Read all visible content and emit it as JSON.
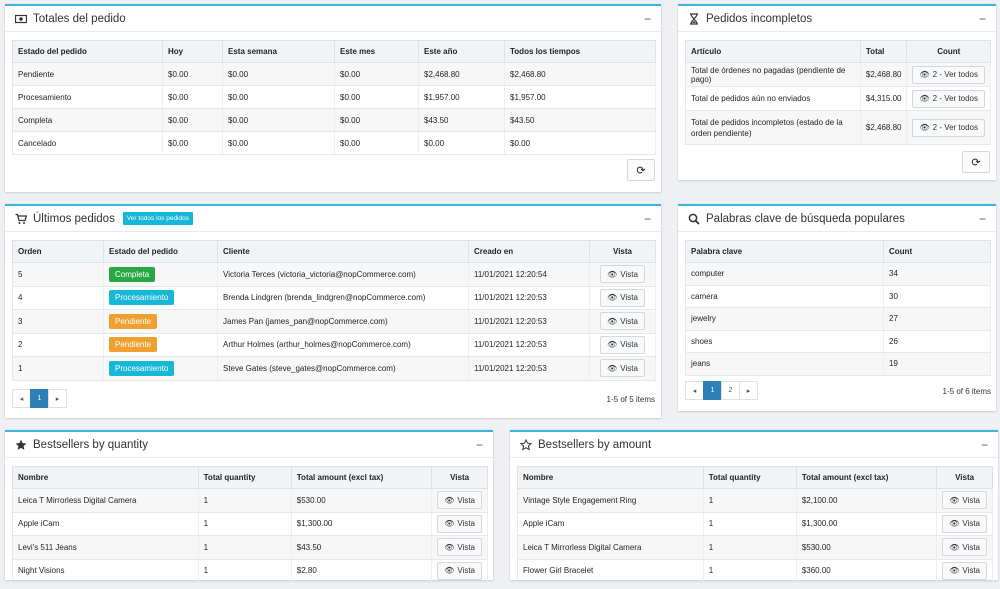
{
  "order_totals": {
    "title": "Totales del pedido",
    "columns": [
      "Estado del pedido",
      "Hoy",
      "Esta semana",
      "Este mes",
      "Este año",
      "Todos los tiempos"
    ],
    "rows": [
      [
        "Pendiente",
        "$0.00",
        "$0.00",
        "$0.00",
        "$2,468.80",
        "$2,468.80"
      ],
      [
        "Procesamiento",
        "$0.00",
        "$0.00",
        "$0.00",
        "$1,957.00",
        "$1,957.00"
      ],
      [
        "Completa",
        "$0.00",
        "$0.00",
        "$0.00",
        "$43.50",
        "$43.50"
      ],
      [
        "Cancelado",
        "$0.00",
        "$0.00",
        "$0.00",
        "$0.00",
        "$0.00"
      ]
    ]
  },
  "incomplete_orders": {
    "title": "Pedidos incompletos",
    "columns": [
      "Artículo",
      "Total",
      "Count"
    ],
    "rows": [
      {
        "item": "Total de órdenes no pagadas (pendiente de pago)",
        "total": "$2,468.80",
        "btn": "2 - Ver todos"
      },
      {
        "item": "Total de pedidos aún no enviados",
        "total": "$4,315.00",
        "btn": "2 - Ver todos"
      },
      {
        "item": "Total de pedidos incompletos (estado de la orden pendiente)",
        "total": "$2,468.80",
        "btn": "2 - Ver todos"
      }
    ]
  },
  "latest_orders": {
    "title": "Últimos pedidos",
    "view_all": "Ver todos los pedidos",
    "columns": [
      "Orden",
      "Estado del pedido",
      "Cliente",
      "Creado en",
      "Vista"
    ],
    "rows": [
      {
        "order": "5",
        "status": "Completa",
        "status_color": "#28a745",
        "customer": "Victoria Terces (victoria_victoria@nopCommerce.com)",
        "created": "11/01/2021 12:20:54",
        "btn": "Vista"
      },
      {
        "order": "4",
        "status": "Procesamiento",
        "status_color": "#17b7d8",
        "customer": "Brenda Lindgren (brenda_lindgren@nopCommerce.com)",
        "created": "11/01/2021 12:20:53",
        "btn": "Vista"
      },
      {
        "order": "3",
        "status": "Pendiente",
        "status_color": "#f0a030",
        "customer": "James Pan (james_pan@nopCommerce.com)",
        "created": "11/01/2021 12:20:53",
        "btn": "Vista"
      },
      {
        "order": "2",
        "status": "Pendiente",
        "status_color": "#f0a030",
        "customer": "Arthur Holmes (arthur_holmes@nopCommerce.com)",
        "created": "11/01/2021 12:20:53",
        "btn": "Vista"
      },
      {
        "order": "1",
        "status": "Procesamiento",
        "status_color": "#17b7d8",
        "customer": "Steve Gates (steve_gates@nopCommerce.com)",
        "created": "11/01/2021 12:20:53",
        "btn": "Vista"
      }
    ],
    "pager": {
      "prev": "◂",
      "pages": [
        "1"
      ],
      "next": "▸",
      "info": "1-5 of 5 items"
    }
  },
  "popular_keywords": {
    "title": "Palabras clave de búsqueda populares",
    "columns": [
      "Palabra clave",
      "Count"
    ],
    "rows": [
      [
        "computer",
        "34"
      ],
      [
        "camera",
        "30"
      ],
      [
        "jewelry",
        "27"
      ],
      [
        "shoes",
        "26"
      ],
      [
        "jeans",
        "19"
      ]
    ],
    "pager": {
      "prev": "◂",
      "pages": [
        "1",
        "2"
      ],
      "next": "▸",
      "info": "1-5 of 6 items"
    }
  },
  "bestsellers_qty": {
    "title": "Bestsellers by quantity",
    "columns": [
      "Nombre",
      "Total quantity",
      "Total amount (excl tax)",
      "Vista"
    ],
    "rows": [
      [
        "Leica T Mirrorless Digital Camera",
        "1",
        "$530.00",
        "Vista"
      ],
      [
        "Apple iCam",
        "1",
        "$1,300.00",
        "Vista"
      ],
      [
        "Levi's 511 Jeans",
        "1",
        "$43.50",
        "Vista"
      ],
      [
        "Night Visions",
        "1",
        "$2.80",
        "Vista"
      ]
    ]
  },
  "bestsellers_amount": {
    "title": "Bestsellers by amount",
    "columns": [
      "Nombre",
      "Total quantity",
      "Total amount (excl tax)",
      "Vista"
    ],
    "rows": [
      [
        "Vintage Style Engagement Ring",
        "1",
        "$2,100.00",
        "Vista"
      ],
      [
        "Apple iCam",
        "1",
        "$1,300.00",
        "Vista"
      ],
      [
        "Leica T Mirrorless Digital Camera",
        "1",
        "$530.00",
        "Vista"
      ],
      [
        "Flower Girl Bracelet",
        "1",
        "$360.00",
        "Vista"
      ]
    ]
  },
  "icons": {
    "collapse": "−",
    "refresh": "⟳",
    "eye": "👁"
  }
}
